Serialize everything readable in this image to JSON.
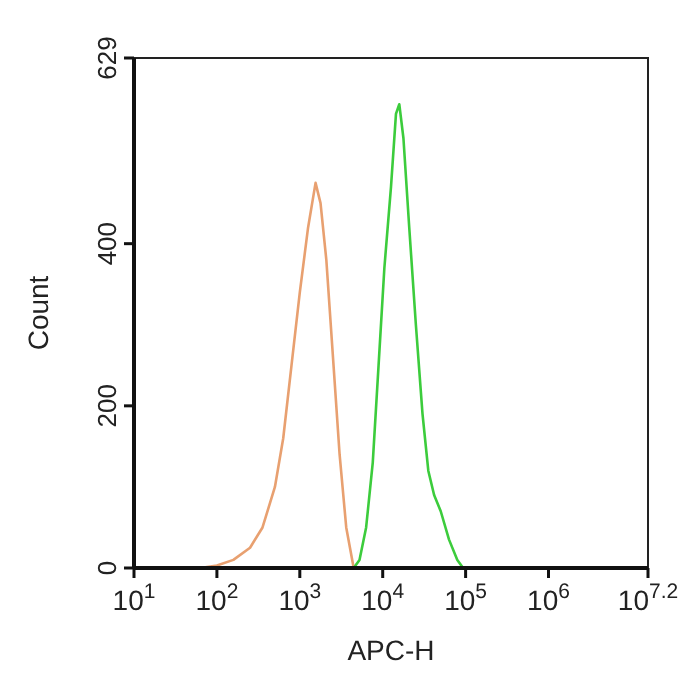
{
  "chart_data": {
    "type": "line",
    "xlabel": "APC-H",
    "ylabel": "Count",
    "log": "x",
    "xlim": [
      10,
      15848932
    ],
    "ylim": [
      0,
      629
    ],
    "xticks": [
      {
        "value": 10,
        "label": "10$^{1}$"
      },
      {
        "value": 100,
        "label": "10$^{2}$"
      },
      {
        "value": 1000,
        "label": "10$^{3}$"
      },
      {
        "value": 10000,
        "label": "10$^{4}$"
      },
      {
        "value": 100000,
        "label": "10$^{5}$"
      },
      {
        "value": 1000000,
        "label": "10$^{6}$"
      },
      {
        "value": 15848932,
        "label": "10$^{7.2}$"
      }
    ],
    "yticks": [
      0,
      200,
      400,
      629
    ],
    "grid": false,
    "marker": "none",
    "line_style": "solid",
    "series": [
      {
        "color": "#e8a070",
        "x": [
          63,
          100,
          158,
          251,
          355,
          501,
          631,
          794,
          1000,
          1259,
          1549,
          1778,
          2089,
          2512,
          3020,
          3631,
          4467
        ],
        "values": [
          0,
          3,
          10,
          25,
          50,
          100,
          160,
          250,
          340,
          420,
          475,
          450,
          380,
          260,
          140,
          50,
          0
        ]
      },
      {
        "color": "#3ccc3c",
        "x": [
          4467,
          5248,
          6310,
          7586,
          8913,
          10471,
          12589,
          14454,
          15849,
          17783,
          20893,
          25119,
          30200,
          35481,
          41687,
          50119,
          63096,
          79433,
          93325
        ],
        "values": [
          0,
          10,
          50,
          130,
          250,
          370,
          470,
          560,
          572,
          530,
          420,
          300,
          190,
          120,
          90,
          70,
          35,
          10,
          0
        ]
      }
    ]
  }
}
